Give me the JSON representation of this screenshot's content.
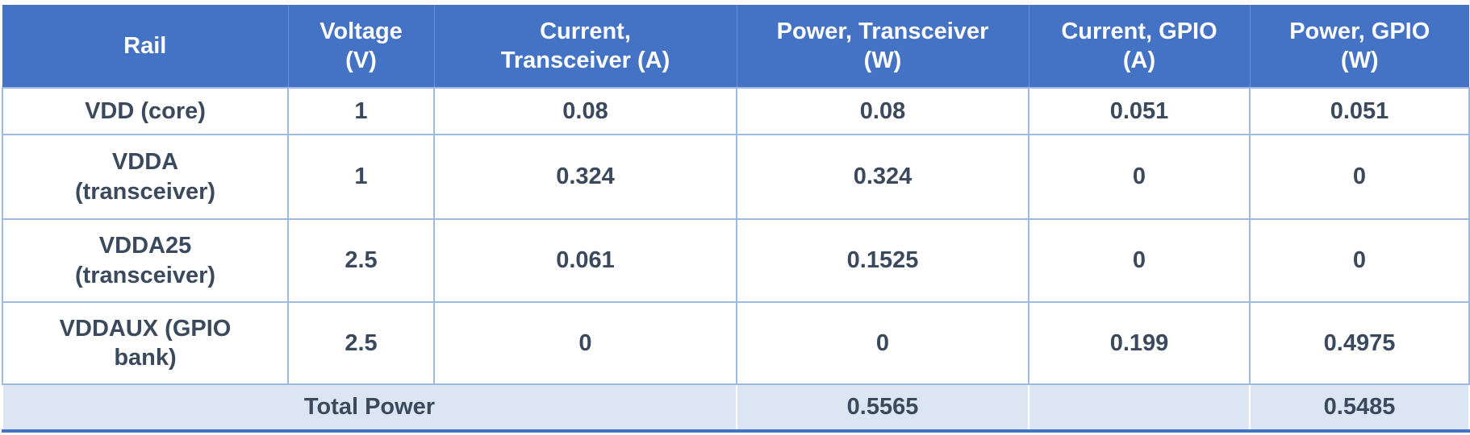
{
  "table": {
    "columns": [
      "Rail",
      "Voltage\n(V)",
      "Current,\nTransceiver (A)",
      "Power, Transceiver\n(W)",
      "Current, GPIO\n(A)",
      "Power, GPIO\n(W)"
    ],
    "rows": [
      [
        "VDD (core)",
        1,
        0.08,
        0.08,
        0.051,
        0.051
      ],
      [
        "VDDA\n(transceiver)",
        1,
        0.324,
        0.324,
        0,
        0
      ],
      [
        "VDDA25\n(transceiver)",
        2.5,
        0.061,
        0.1525,
        0,
        0
      ],
      [
        "VDDAUX (GPIO\nbank)",
        2.5,
        0,
        0,
        0.199,
        0.4975
      ]
    ],
    "total": {
      "label": "Total Power",
      "power_transceiver": 0.5565,
      "power_gpio": 0.5485
    }
  }
}
